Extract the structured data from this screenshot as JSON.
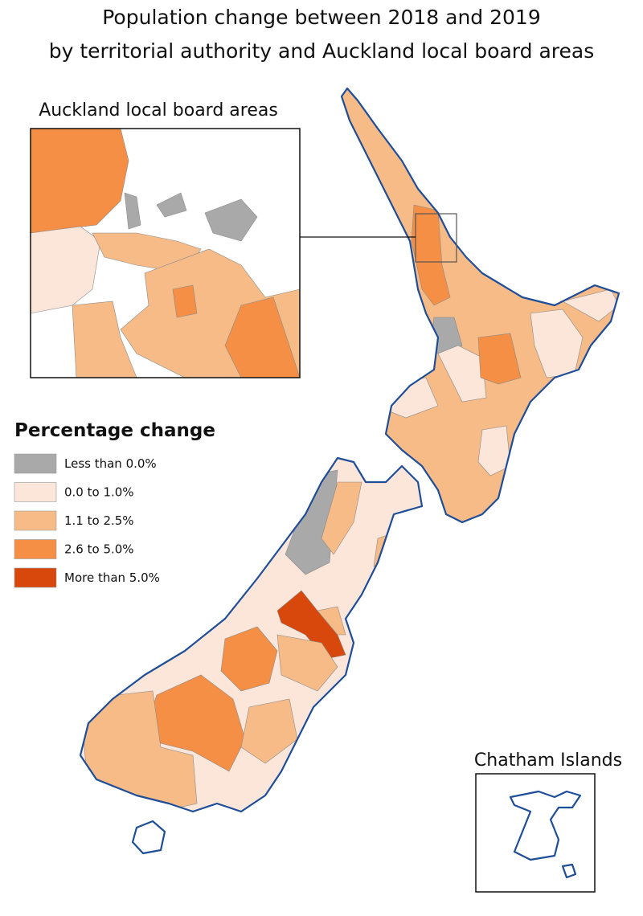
{
  "title": [
    "Population change between 2018 and 2019",
    "by territorial authority and Auckland local board areas"
  ],
  "inset": {
    "title": "Auckland local board areas"
  },
  "legend": {
    "title": "Percentage change",
    "items": [
      {
        "label": "Less than 0.0%",
        "color": "#a9a9a9"
      },
      {
        "label": "0.0 to 1.0%",
        "color": "#fbe6d9"
      },
      {
        "label": "1.1 to 2.5%",
        "color": "#f7bb87"
      },
      {
        "label": "2.6 to 5.0%",
        "color": "#f58f45"
      },
      {
        "label": "More than 5.0%",
        "color": "#d8480c"
      }
    ]
  },
  "chatham": {
    "title": "Chatham Islands"
  }
}
